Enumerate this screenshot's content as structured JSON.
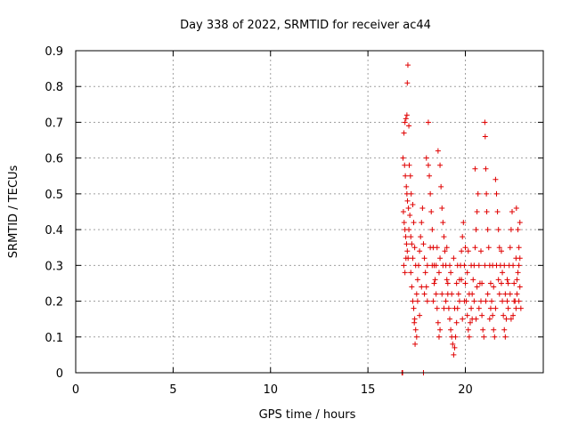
{
  "chart_data": {
    "type": "scatter",
    "title": "Day 338 of 2022, SRMTID for receiver ac44",
    "xlabel": "GPS time / hours",
    "ylabel": "SRMTID / TECUs",
    "xlim": [
      0,
      24
    ],
    "ylim": [
      0,
      0.9
    ],
    "grid": true,
    "xticks": [
      0,
      5,
      10,
      15,
      20
    ],
    "xtick_labels": [
      "0",
      "5",
      "10",
      "15",
      "20"
    ],
    "yticks": [
      0,
      0.1,
      0.2,
      0.3,
      0.4,
      0.5,
      0.6,
      0.7,
      0.8,
      0.9
    ],
    "ytick_labels": [
      "0",
      "0.1",
      "0.2",
      "0.3",
      "0.4",
      "0.5",
      "0.6",
      "0.7",
      "0.8",
      "0.9"
    ],
    "marker": "plus",
    "color": "#e00000",
    "series": [
      {
        "name": "SRMTID",
        "points": [
          [
            16.75,
            0.0
          ],
          [
            16.78,
            0.0
          ],
          [
            17.85,
            0.0
          ],
          [
            16.85,
            0.67
          ],
          [
            16.9,
            0.7
          ],
          [
            16.95,
            0.71
          ],
          [
            17.0,
            0.72
          ],
          [
            17.05,
            0.86
          ],
          [
            17.02,
            0.81
          ],
          [
            17.1,
            0.69
          ],
          [
            16.8,
            0.6
          ],
          [
            16.88,
            0.58
          ],
          [
            16.92,
            0.55
          ],
          [
            16.97,
            0.52
          ],
          [
            17.0,
            0.5
          ],
          [
            17.03,
            0.48
          ],
          [
            17.08,
            0.46
          ],
          [
            16.82,
            0.45
          ],
          [
            16.86,
            0.42
          ],
          [
            16.9,
            0.4
          ],
          [
            16.94,
            0.38
          ],
          [
            16.98,
            0.36
          ],
          [
            17.02,
            0.34
          ],
          [
            17.06,
            0.32
          ],
          [
            16.84,
            0.3
          ],
          [
            16.9,
            0.28
          ],
          [
            16.95,
            0.32
          ],
          [
            17.1,
            0.4
          ],
          [
            17.15,
            0.44
          ],
          [
            17.2,
            0.38
          ],
          [
            17.25,
            0.36
          ],
          [
            17.12,
            0.58
          ],
          [
            17.18,
            0.55
          ],
          [
            17.22,
            0.5
          ],
          [
            17.3,
            0.47
          ],
          [
            17.35,
            0.42
          ],
          [
            17.4,
            0.35
          ],
          [
            17.45,
            0.3
          ],
          [
            17.3,
            0.2
          ],
          [
            17.35,
            0.18
          ],
          [
            17.4,
            0.15
          ],
          [
            17.45,
            0.12
          ],
          [
            17.5,
            0.1
          ],
          [
            17.42,
            0.08
          ],
          [
            17.38,
            0.14
          ],
          [
            17.5,
            0.22
          ],
          [
            17.55,
            0.26
          ],
          [
            17.6,
            0.3
          ],
          [
            17.65,
            0.34
          ],
          [
            17.7,
            0.38
          ],
          [
            17.75,
            0.42
          ],
          [
            17.8,
            0.46
          ],
          [
            17.85,
            0.36
          ],
          [
            17.9,
            0.32
          ],
          [
            17.95,
            0.28
          ],
          [
            18.0,
            0.24
          ],
          [
            18.05,
            0.2
          ],
          [
            18.1,
            0.7
          ],
          [
            18.0,
            0.6
          ],
          [
            18.1,
            0.58
          ],
          [
            18.15,
            0.55
          ],
          [
            18.2,
            0.5
          ],
          [
            18.25,
            0.45
          ],
          [
            18.3,
            0.4
          ],
          [
            18.35,
            0.35
          ],
          [
            18.4,
            0.3
          ],
          [
            18.45,
            0.26
          ],
          [
            18.5,
            0.22
          ],
          [
            18.55,
            0.18
          ],
          [
            18.6,
            0.14
          ],
          [
            18.65,
            0.1
          ],
          [
            18.7,
            0.12
          ],
          [
            18.6,
            0.62
          ],
          [
            18.7,
            0.58
          ],
          [
            18.75,
            0.52
          ],
          [
            18.8,
            0.46
          ],
          [
            18.85,
            0.42
          ],
          [
            18.9,
            0.38
          ],
          [
            18.95,
            0.34
          ],
          [
            19.0,
            0.3
          ],
          [
            19.05,
            0.26
          ],
          [
            19.1,
            0.22
          ],
          [
            19.15,
            0.18
          ],
          [
            19.2,
            0.15
          ],
          [
            19.25,
            0.12
          ],
          [
            19.3,
            0.1
          ],
          [
            19.35,
            0.08
          ],
          [
            19.4,
            0.05
          ],
          [
            19.45,
            0.07
          ],
          [
            19.5,
            0.1
          ],
          [
            19.55,
            0.14
          ],
          [
            19.6,
            0.18
          ],
          [
            19.65,
            0.22
          ],
          [
            19.7,
            0.26
          ],
          [
            19.75,
            0.3
          ],
          [
            19.8,
            0.34
          ],
          [
            19.85,
            0.38
          ],
          [
            19.9,
            0.42
          ],
          [
            19.95,
            0.3
          ],
          [
            20.0,
            0.25
          ],
          [
            20.05,
            0.2
          ],
          [
            20.1,
            0.16
          ],
          [
            20.15,
            0.12
          ],
          [
            20.2,
            0.1
          ],
          [
            20.25,
            0.14
          ],
          [
            20.3,
            0.18
          ],
          [
            20.35,
            0.22
          ],
          [
            20.4,
            0.26
          ],
          [
            20.45,
            0.3
          ],
          [
            20.5,
            0.35
          ],
          [
            20.55,
            0.4
          ],
          [
            20.6,
            0.45
          ],
          [
            20.5,
            0.57
          ],
          [
            20.65,
            0.5
          ],
          [
            20.7,
            0.3
          ],
          [
            20.75,
            0.25
          ],
          [
            20.8,
            0.2
          ],
          [
            20.85,
            0.16
          ],
          [
            20.9,
            0.12
          ],
          [
            20.95,
            0.1
          ],
          [
            21.0,
            0.7
          ],
          [
            21.02,
            0.66
          ],
          [
            21.05,
            0.57
          ],
          [
            21.08,
            0.5
          ],
          [
            21.1,
            0.45
          ],
          [
            21.15,
            0.4
          ],
          [
            21.2,
            0.35
          ],
          [
            21.25,
            0.3
          ],
          [
            21.3,
            0.25
          ],
          [
            21.35,
            0.2
          ],
          [
            21.4,
            0.16
          ],
          [
            21.45,
            0.12
          ],
          [
            21.5,
            0.1
          ],
          [
            21.55,
            0.54
          ],
          [
            21.6,
            0.5
          ],
          [
            21.65,
            0.45
          ],
          [
            21.7,
            0.4
          ],
          [
            21.75,
            0.35
          ],
          [
            21.8,
            0.3
          ],
          [
            21.85,
            0.25
          ],
          [
            21.9,
            0.2
          ],
          [
            21.95,
            0.16
          ],
          [
            22.0,
            0.12
          ],
          [
            22.05,
            0.1
          ],
          [
            22.1,
            0.15
          ],
          [
            22.15,
            0.2
          ],
          [
            22.2,
            0.25
          ],
          [
            22.25,
            0.3
          ],
          [
            22.3,
            0.35
          ],
          [
            22.35,
            0.4
          ],
          [
            22.4,
            0.45
          ],
          [
            22.45,
            0.3
          ],
          [
            22.5,
            0.25
          ],
          [
            22.55,
            0.2
          ],
          [
            22.6,
            0.18
          ],
          [
            22.65,
            0.22
          ],
          [
            22.7,
            0.28
          ],
          [
            22.75,
            0.35
          ],
          [
            22.8,
            0.42
          ],
          [
            22.62,
            0.46
          ],
          [
            22.7,
            0.4
          ],
          [
            22.75,
            0.3
          ],
          [
            22.8,
            0.24
          ],
          [
            22.85,
            0.18
          ],
          [
            18.3,
            0.3
          ],
          [
            18.4,
            0.25
          ],
          [
            18.55,
            0.35
          ],
          [
            18.65,
            0.28
          ],
          [
            18.8,
            0.22
          ],
          [
            18.9,
            0.18
          ],
          [
            19.0,
            0.2
          ],
          [
            19.1,
            0.25
          ],
          [
            19.2,
            0.3
          ],
          [
            19.3,
            0.22
          ],
          [
            19.45,
            0.18
          ],
          [
            19.55,
            0.25
          ],
          [
            19.7,
            0.2
          ],
          [
            19.85,
            0.15
          ],
          [
            20.0,
            0.35
          ],
          [
            20.1,
            0.28
          ],
          [
            20.2,
            0.22
          ],
          [
            20.3,
            0.3
          ],
          [
            20.45,
            0.2
          ],
          [
            20.55,
            0.15
          ],
          [
            20.7,
            0.18
          ],
          [
            20.85,
            0.25
          ],
          [
            21.0,
            0.3
          ],
          [
            21.15,
            0.22
          ],
          [
            21.3,
            0.18
          ],
          [
            21.45,
            0.24
          ],
          [
            21.6,
            0.3
          ],
          [
            21.75,
            0.22
          ],
          [
            21.9,
            0.28
          ],
          [
            22.05,
            0.22
          ],
          [
            22.2,
            0.18
          ],
          [
            22.35,
            0.15
          ],
          [
            22.5,
            0.2
          ],
          [
            22.65,
            0.26
          ],
          [
            22.8,
            0.32
          ],
          [
            17.2,
            0.28
          ],
          [
            17.25,
            0.24
          ],
          [
            17.3,
            0.32
          ],
          [
            17.55,
            0.2
          ],
          [
            17.65,
            0.16
          ],
          [
            17.75,
            0.24
          ],
          [
            17.9,
            0.22
          ],
          [
            18.05,
            0.3
          ],
          [
            18.2,
            0.35
          ],
          [
            18.35,
            0.2
          ],
          [
            18.5,
            0.3
          ],
          [
            18.7,
            0.32
          ],
          [
            18.85,
            0.3
          ],
          [
            19.05,
            0.35
          ],
          [
            19.25,
            0.28
          ],
          [
            19.4,
            0.32
          ],
          [
            19.6,
            0.3
          ],
          [
            19.8,
            0.26
          ],
          [
            19.95,
            0.2
          ],
          [
            20.15,
            0.34
          ],
          [
            20.35,
            0.15
          ],
          [
            20.6,
            0.24
          ],
          [
            20.8,
            0.34
          ],
          [
            21.05,
            0.2
          ],
          [
            21.25,
            0.15
          ],
          [
            21.4,
            0.3
          ],
          [
            21.55,
            0.18
          ],
          [
            21.7,
            0.26
          ],
          [
            21.85,
            0.34
          ],
          [
            22.0,
            0.3
          ],
          [
            22.15,
            0.26
          ],
          [
            22.3,
            0.22
          ],
          [
            22.45,
            0.16
          ],
          [
            22.6,
            0.32
          ],
          [
            22.75,
            0.2
          ]
        ]
      }
    ]
  }
}
